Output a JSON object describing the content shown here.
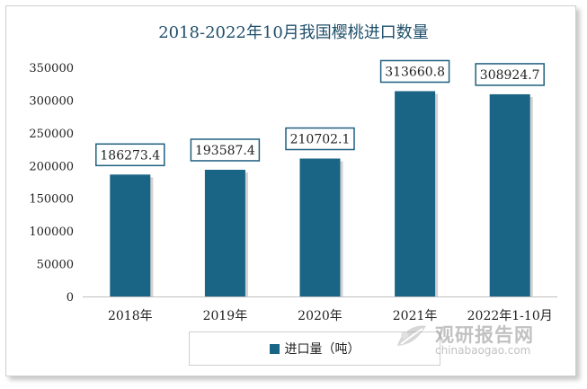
{
  "chart_data": {
    "type": "bar",
    "title": "2018-2022年10月我国樱桃进口数量",
    "categories": [
      "2018年",
      "2019年",
      "2020年",
      "2021年",
      "2022年1-10月"
    ],
    "series": [
      {
        "name": "进口量（吨）",
        "values": [
          186273.4,
          193587.4,
          210702.1,
          313660.8,
          308924.7
        ]
      }
    ],
    "data_labels": [
      "186273.4",
      "193587.4",
      "210702.1",
      "313660.8",
      "308924.7"
    ],
    "y_ticks": [
      "0",
      "50000",
      "100000",
      "150000",
      "200000",
      "250000",
      "300000",
      "350000"
    ],
    "ylim": [
      0,
      350000
    ],
    "grid": false,
    "legend_position": "bottom",
    "bar_color": "#1a6585",
    "xlabel": "",
    "ylabel": ""
  },
  "watermark": {
    "name": "观研报告网",
    "url": "chinabaogao.com",
    "icon": "leaf-logo-icon"
  }
}
